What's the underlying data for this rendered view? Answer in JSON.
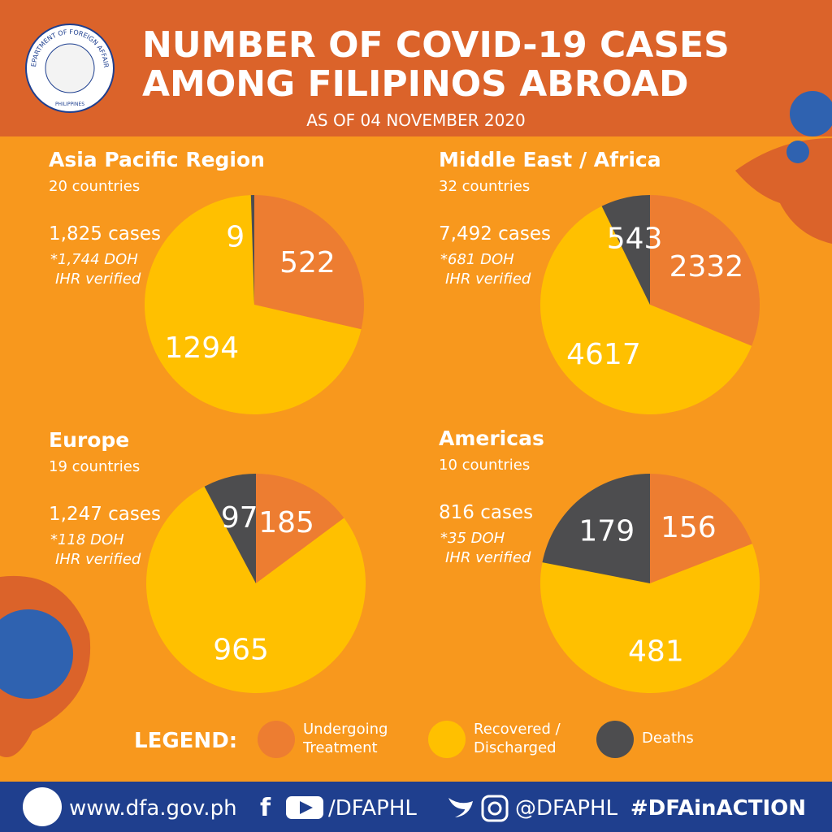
{
  "header": {
    "title_lines": [
      "NUMBER OF  COVID-19 CASES",
      "AMONG FILIPINOS ABROAD"
    ],
    "subtitle": "AS OF 04 NOVEMBER 2020",
    "logo_text": "DEPARTMENT OF FOREIGN AFFAIRS",
    "logo_country": "PHILIPPINES"
  },
  "chart_data": [
    {
      "type": "pie",
      "title": "Asia Pacific Region",
      "subtitle": "20 countries",
      "cases": "1,825 cases",
      "note": [
        "*1,744 DOH",
        "IHR verified"
      ],
      "values": [
        522,
        1294,
        9
      ]
    },
    {
      "type": "pie",
      "title": "Middle East / Africa",
      "subtitle": "32 countries",
      "cases": "7,492 cases",
      "note": [
        "*681 DOH",
        "IHR verified"
      ],
      "values": [
        2332,
        4617,
        543
      ]
    },
    {
      "type": "pie",
      "title": "Europe",
      "subtitle": "19 countries",
      "cases": "1,247 cases",
      "note": [
        "*118 DOH",
        "IHR verified"
      ],
      "values": [
        185,
        965,
        97
      ]
    },
    {
      "type": "pie",
      "title": "Americas",
      "subtitle": "10 countries",
      "cases": "816 cases",
      "note": [
        "*35 DOH",
        "IHR verified"
      ],
      "values": [
        156,
        481,
        179
      ]
    }
  ],
  "legend": {
    "label": "LEGEND:",
    "categories": [
      "Undergoing Treatment",
      "Recovered / Discharged",
      "Deaths"
    ],
    "colors": [
      "#ed7d31",
      "#ffc000",
      "#4d4d4f"
    ]
  },
  "footer": {
    "website": "www.dfa.gov.ph",
    "handle_youtube": "/DFAPHL",
    "handle_twitter": "@DFAPHL",
    "hashtag": "#DFAinACTION"
  }
}
